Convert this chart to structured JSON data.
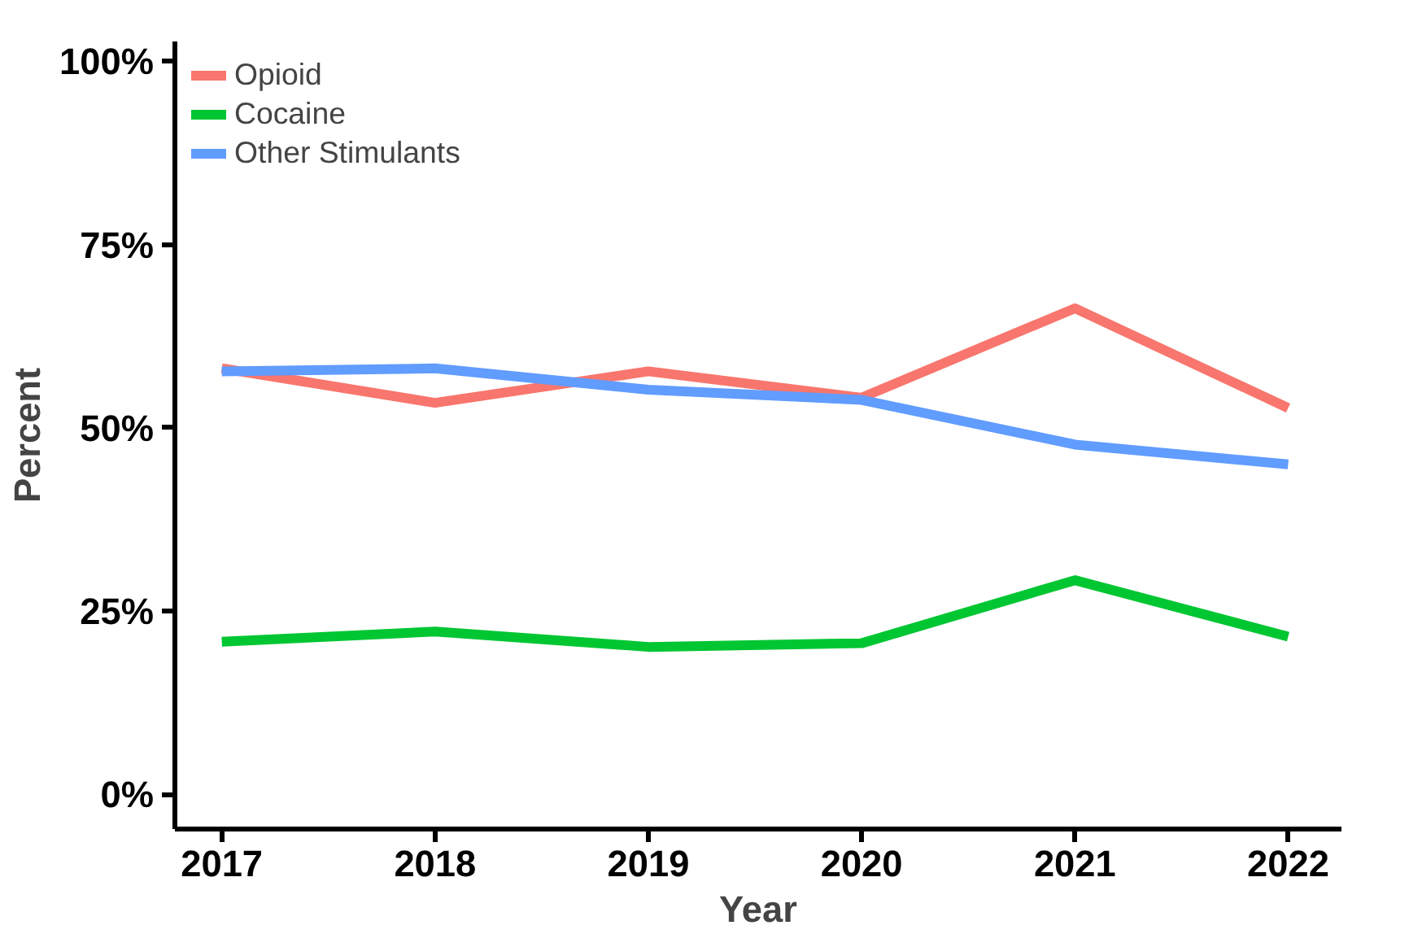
{
  "chart_data": {
    "type": "line",
    "xlabel": "Year",
    "ylabel": "Percent",
    "x": [
      2017,
      2018,
      2019,
      2020,
      2021,
      2022
    ],
    "series": [
      {
        "name": "Opioid",
        "color": "#f8766d",
        "values": [
          58.1,
          53.4,
          57.7,
          54.1,
          66.3,
          52.7
        ]
      },
      {
        "name": "Cocaine",
        "color": "#00c632",
        "values": [
          20.8,
          22.2,
          20.1,
          20.6,
          29.2,
          21.5
        ]
      },
      {
        "name": "Other Stimulants",
        "color": "#619cff",
        "values": [
          57.7,
          58.1,
          55.2,
          53.8,
          47.7,
          45.0
        ]
      }
    ],
    "xlim": [
      2016.78,
      2022.25
    ],
    "ylim": [
      -4.75,
      102.7
    ],
    "xticks": [
      2017,
      2018,
      2019,
      2020,
      2021,
      2022
    ],
    "yticks": [
      {
        "value": 0,
        "label": "0%"
      },
      {
        "value": 25,
        "label": "25%"
      },
      {
        "value": 50,
        "label": "50%"
      },
      {
        "value": 75,
        "label": "75%"
      },
      {
        "value": 100,
        "label": "100%"
      }
    ],
    "grid": false,
    "legend": "top left",
    "line_style": "solid",
    "marker": "none"
  }
}
